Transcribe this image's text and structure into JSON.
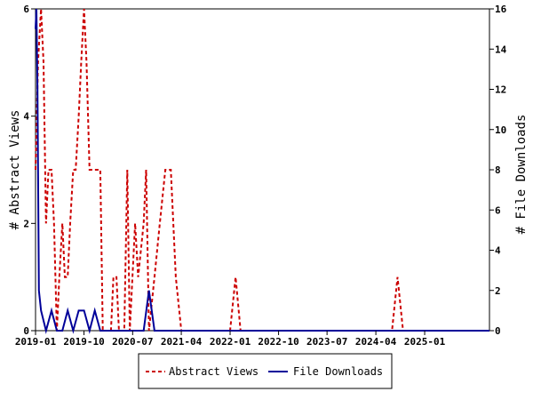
{
  "chart_data": {
    "type": "line",
    "title": "",
    "xlabel": "",
    "ylabel_left": "# Abstract Views",
    "ylabel_right": "# File Downloads",
    "x_axis": {
      "type": "date",
      "range": [
        "2019-01",
        "2026-01"
      ],
      "ticks": [
        "2019-01",
        "2019-10",
        "2020-07",
        "2021-04",
        "2022-01",
        "2022-10",
        "2023-07",
        "2024-04",
        "2025-01"
      ]
    },
    "y_left": {
      "range": [
        0,
        6
      ],
      "ticks": [
        "0",
        "2",
        "4",
        "6"
      ]
    },
    "y_right": {
      "range": [
        0,
        16
      ],
      "ticks": [
        "0",
        "2",
        "4",
        "6",
        "8",
        "10",
        "12",
        "14",
        "16"
      ]
    },
    "grid": false,
    "legend_position": "bottom",
    "series": [
      {
        "name": "Abstract Views",
        "axis": "left",
        "color": "#cc0000",
        "style": "dashed",
        "points": [
          [
            "2019-01-01",
            3
          ],
          [
            "2019-01-15",
            5
          ],
          [
            "2019-02-01",
            6
          ],
          [
            "2019-02-15",
            5
          ],
          [
            "2019-03-01",
            2
          ],
          [
            "2019-03-15",
            3
          ],
          [
            "2019-04-01",
            3
          ],
          [
            "2019-04-15",
            2
          ],
          [
            "2019-05-01",
            0
          ],
          [
            "2019-05-15",
            1
          ],
          [
            "2019-06-01",
            2
          ],
          [
            "2019-06-15",
            1
          ],
          [
            "2019-07-01",
            1
          ],
          [
            "2019-07-15",
            2
          ],
          [
            "2019-08-01",
            3
          ],
          [
            "2019-08-15",
            3
          ],
          [
            "2019-09-01",
            4
          ],
          [
            "2019-09-15",
            5
          ],
          [
            "2019-10-01",
            6
          ],
          [
            "2019-10-15",
            5
          ],
          [
            "2019-11-01",
            3
          ],
          [
            "2019-12-01",
            3
          ],
          [
            "2020-01-01",
            3
          ],
          [
            "2020-01-15",
            0
          ],
          [
            "2020-02-15",
            0
          ],
          [
            "2020-03-01",
            0
          ],
          [
            "2020-03-15",
            1
          ],
          [
            "2020-04-01",
            1
          ],
          [
            "2020-04-15",
            0
          ],
          [
            "2020-05-15",
            0
          ],
          [
            "2020-06-01",
            3
          ],
          [
            "2020-06-15",
            0
          ],
          [
            "2020-07-15",
            2
          ],
          [
            "2020-08-01",
            1
          ],
          [
            "2020-09-01",
            2
          ],
          [
            "2020-09-15",
            3
          ],
          [
            "2020-10-01",
            0
          ],
          [
            "2020-11-01",
            1
          ],
          [
            "2020-12-01",
            2
          ],
          [
            "2021-01-01",
            3
          ],
          [
            "2021-02-01",
            3
          ],
          [
            "2021-03-01",
            1
          ],
          [
            "2021-04-01",
            0
          ],
          [
            "2021-05-01",
            0
          ],
          [
            "2021-06-01",
            0
          ],
          [
            "2021-07-01",
            0
          ],
          [
            "2021-08-01",
            0
          ],
          [
            "2021-09-01",
            0
          ],
          [
            "2021-10-01",
            0
          ],
          [
            "2021-11-01",
            0
          ],
          [
            "2021-12-01",
            0
          ],
          [
            "2022-01-01",
            0
          ],
          [
            "2022-02-01",
            1
          ],
          [
            "2022-03-01",
            0
          ],
          [
            "2022-04-01",
            0
          ],
          [
            "2022-07-01",
            0
          ],
          [
            "2022-10-01",
            0
          ],
          [
            "2023-01-01",
            0
          ],
          [
            "2023-04-01",
            0
          ],
          [
            "2023-07-01",
            0
          ],
          [
            "2023-10-01",
            0
          ],
          [
            "2024-01-01",
            0
          ],
          [
            "2024-04-01",
            0
          ],
          [
            "2024-07-01",
            0
          ],
          [
            "2024-08-01",
            1
          ],
          [
            "2024-09-01",
            0
          ],
          [
            "2024-12-01",
            0
          ],
          [
            "2025-03-01",
            0
          ],
          [
            "2025-06-01",
            0
          ],
          [
            "2025-09-01",
            0
          ],
          [
            "2026-01-01",
            0
          ]
        ]
      },
      {
        "name": "File Downloads",
        "axis": "right",
        "color": "#000099",
        "style": "solid",
        "points": [
          [
            "2019-01-01",
            15
          ],
          [
            "2019-01-06",
            16
          ],
          [
            "2019-01-12",
            12
          ],
          [
            "2019-01-20",
            2
          ],
          [
            "2019-02-01",
            1
          ],
          [
            "2019-03-01",
            0
          ],
          [
            "2019-04-01",
            1
          ],
          [
            "2019-05-01",
            0
          ],
          [
            "2019-06-01",
            0
          ],
          [
            "2019-07-01",
            1
          ],
          [
            "2019-08-01",
            0
          ],
          [
            "2019-09-01",
            1
          ],
          [
            "2019-10-01",
            1
          ],
          [
            "2019-11-01",
            0
          ],
          [
            "2019-12-01",
            1
          ],
          [
            "2020-01-01",
            0
          ],
          [
            "2020-02-01",
            0
          ],
          [
            "2020-04-01",
            0
          ],
          [
            "2020-06-01",
            0
          ],
          [
            "2020-08-01",
            0
          ],
          [
            "2020-09-01",
            0
          ],
          [
            "2020-10-01",
            2
          ],
          [
            "2020-11-01",
            0
          ],
          [
            "2021-01-01",
            0
          ],
          [
            "2022-01-01",
            0
          ],
          [
            "2023-01-01",
            0
          ],
          [
            "2024-01-01",
            0
          ],
          [
            "2025-01-01",
            0
          ],
          [
            "2026-01-01",
            0
          ]
        ]
      }
    ]
  }
}
